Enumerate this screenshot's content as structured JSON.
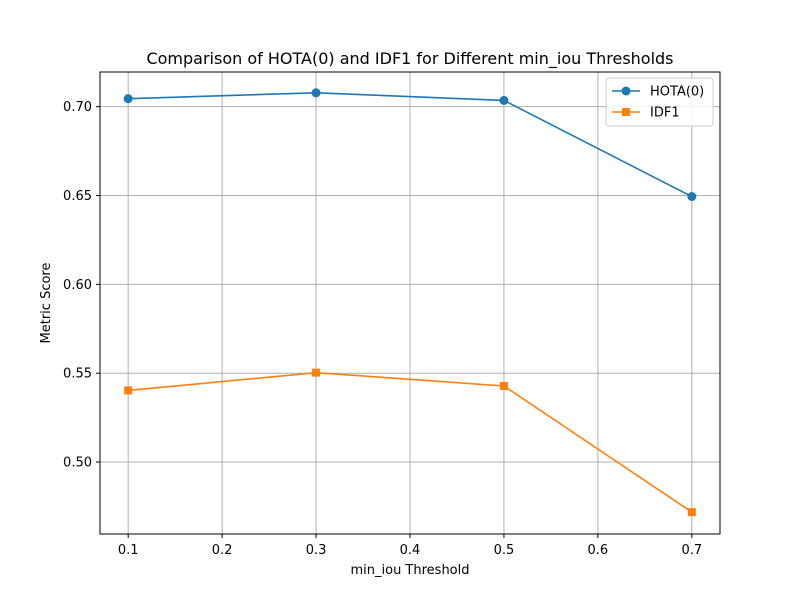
{
  "chart_data": {
    "type": "line",
    "title": "Comparison of HOTA(0) and IDF1 for Different min_iou Thresholds",
    "xlabel": "min_iou Threshold",
    "ylabel": "Metric Score",
    "x": [
      0.1,
      0.3,
      0.5,
      0.7
    ],
    "xlim": [
      0.07,
      0.73
    ],
    "ylim": [
      0.4595,
      0.7195
    ],
    "xticks": [
      0.1,
      0.2,
      0.3,
      0.4,
      0.5,
      0.6,
      0.7
    ],
    "xtick_labels": [
      "0.1",
      "0.2",
      "0.3",
      "0.4",
      "0.5",
      "0.6",
      "0.7"
    ],
    "yticks": [
      0.5,
      0.55,
      0.6,
      0.65,
      0.7
    ],
    "ytick_labels": [
      "0.50",
      "0.55",
      "0.60",
      "0.65",
      "0.70"
    ],
    "grid": true,
    "legend_position": "top-right",
    "series": [
      {
        "name": "HOTA(0)",
        "values": [
          0.7045,
          0.7078,
          0.7035,
          0.6494
        ],
        "color": "#1f77b4",
        "marker": "circle"
      },
      {
        "name": "IDF1",
        "values": [
          0.5403,
          0.5503,
          0.5428,
          0.4718
        ],
        "color": "#ff7f0e",
        "marker": "square"
      }
    ]
  }
}
